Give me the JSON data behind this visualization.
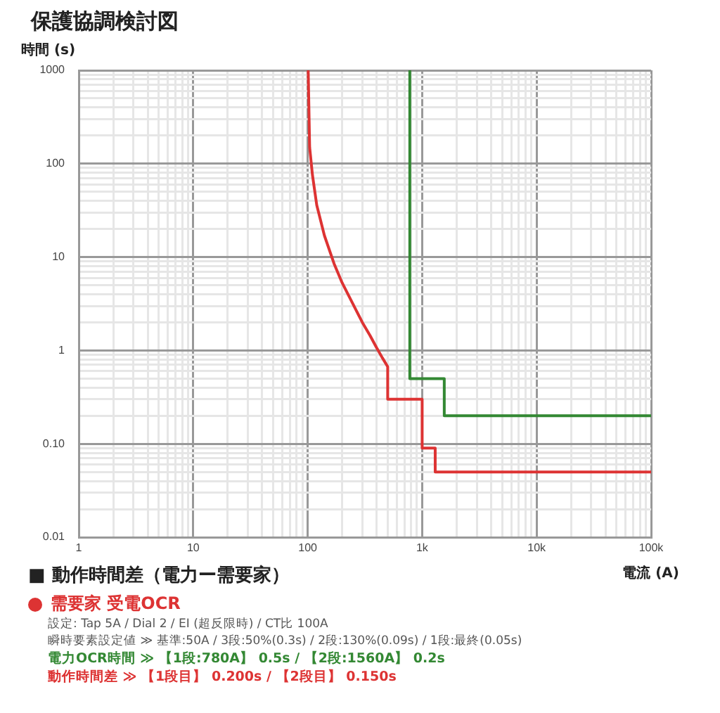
{
  "chart_data": {
    "type": "line",
    "title": "保護協調検討図",
    "ylabel": "時間 (s)",
    "xlabel": "電流 (A)",
    "log": "xy",
    "grid": true,
    "legend": "bottom",
    "marker": "none",
    "line_style": "solid",
    "xlim": [
      1,
      100000
    ],
    "ylim": [
      0.01,
      1000
    ],
    "xticks": [
      1,
      {
        "value": 2,
        "label": null
      },
      {
        "value": 3,
        "label": null
      },
      {
        "value": 4,
        "label": null
      },
      {
        "value": 5,
        "label": null
      },
      {
        "value": 6,
        "label": null
      },
      {
        "value": 7,
        "label": null
      },
      {
        "value": 8,
        "label": null
      },
      {
        "value": 9,
        "label": null
      },
      10,
      {
        "value": 20,
        "label": null
      },
      {
        "value": 30,
        "label": null
      },
      {
        "value": 40,
        "label": null
      },
      {
        "value": 50,
        "label": null
      },
      {
        "value": 60,
        "label": null
      },
      {
        "value": 70,
        "label": null
      },
      {
        "value": 80,
        "label": null
      },
      {
        "value": 90,
        "label": null
      },
      100,
      {
        "value": 200,
        "label": null
      },
      {
        "value": 300,
        "label": null
      },
      {
        "value": 400,
        "label": null
      },
      {
        "value": 500,
        "label": null
      },
      {
        "value": 600,
        "label": null
      },
      {
        "value": 700,
        "label": null
      },
      {
        "value": 800,
        "label": null
      },
      {
        "value": 900,
        "label": null
      },
      {
        "value": 1000,
        "label": "1k"
      },
      {
        "value": 2000,
        "label": null
      },
      {
        "value": 3000,
        "label": null
      },
      {
        "value": 4000,
        "label": null
      },
      {
        "value": 5000,
        "label": null
      },
      {
        "value": 6000,
        "label": null
      },
      {
        "value": 7000,
        "label": null
      },
      {
        "value": 8000,
        "label": null
      },
      {
        "value": 9000,
        "label": null
      },
      {
        "value": 10000,
        "label": "10k"
      },
      {
        "value": 20000,
        "label": null
      },
      {
        "value": 30000,
        "label": null
      },
      {
        "value": 40000,
        "label": null
      },
      {
        "value": 50000,
        "label": null
      },
      {
        "value": 60000,
        "label": null
      },
      {
        "value": 70000,
        "label": null
      },
      {
        "value": 80000,
        "label": null
      },
      {
        "value": 90000,
        "label": null
      },
      {
        "value": 100000,
        "label": "100k"
      }
    ],
    "yticks": [
      {
        "value": 0.01,
        "label": "0.01"
      },
      {
        "value": 0.02,
        "label": null
      },
      {
        "value": 0.03,
        "label": null
      },
      {
        "value": 0.04,
        "label": null
      },
      {
        "value": 0.05,
        "label": null
      },
      {
        "value": 0.06,
        "label": null
      },
      {
        "value": 0.07,
        "label": null
      },
      {
        "value": 0.08,
        "label": null
      },
      {
        "value": 0.09,
        "label": null
      },
      {
        "value": 0.1,
        "label": "0.10"
      },
      {
        "value": 0.2,
        "label": null
      },
      {
        "value": 0.3,
        "label": null
      },
      {
        "value": 0.4,
        "label": null
      },
      {
        "value": 0.5,
        "label": null
      },
      {
        "value": 0.6,
        "label": null
      },
      {
        "value": 0.7,
        "label": null
      },
      {
        "value": 0.8,
        "label": null
      },
      {
        "value": 0.9,
        "label": null
      },
      1,
      {
        "value": 2,
        "label": null
      },
      {
        "value": 3,
        "label": null
      },
      {
        "value": 4,
        "label": null
      },
      {
        "value": 5,
        "label": null
      },
      {
        "value": 6,
        "label": null
      },
      {
        "value": 7,
        "label": null
      },
      {
        "value": 8,
        "label": null
      },
      {
        "value": 9,
        "label": null
      },
      10,
      {
        "value": 20,
        "label": null
      },
      {
        "value": 30,
        "label": null
      },
      {
        "value": 40,
        "label": null
      },
      {
        "value": 50,
        "label": null
      },
      {
        "value": 60,
        "label": null
      },
      {
        "value": 70,
        "label": null
      },
      {
        "value": 80,
        "label": null
      },
      {
        "value": 90,
        "label": null
      },
      100,
      {
        "value": 200,
        "label": null
      },
      {
        "value": 300,
        "label": null
      },
      {
        "value": 400,
        "label": null
      },
      {
        "value": 500,
        "label": null
      },
      {
        "value": 600,
        "label": null
      },
      {
        "value": 700,
        "label": null
      },
      {
        "value": 800,
        "label": null
      },
      {
        "value": 900,
        "label": null
      },
      1000
    ],
    "series": [
      {
        "name": "需要家 受電OCR",
        "color": "#dd3333",
        "x": [
          101,
          104,
          110,
          120,
          140,
          170,
          200,
          250,
          300,
          350,
          400,
          450,
          500,
          500,
          1000,
          1000,
          1300,
          1300,
          100000
        ],
        "values": [
          1000,
          150,
          76,
          36,
          17,
          8.5,
          5.3,
          3.1,
          2.0,
          1.45,
          1.07,
          0.83,
          0.67,
          0.3,
          0.3,
          0.09,
          0.09,
          0.05,
          0.05
        ]
      },
      {
        "color": "#338833",
        "x": [
          780,
          780,
          1560,
          1560,
          100000
        ],
        "values": [
          1000,
          0.5,
          0.5,
          0.2,
          0.2
        ]
      }
    ],
    "annotations": [
      "■ 動作時間差（電力ー需要家）",
      "設定: Tap 5A / Dial 2 / EI (超反限時) / CT比 100A",
      "瞬時要素設定値 ≫ 基準:50A / 3段:50%(0.3s) / 2段:130%(0.09s) / 1段:最終(0.05s)",
      "電力OCR時間 ≫ 【1段:780A】 0.5s / 【2段:1560A】 0.2s",
      "動作時間差 ≫ 【1段目】 0.200s / 【2段目】 0.150s"
    ]
  }
}
